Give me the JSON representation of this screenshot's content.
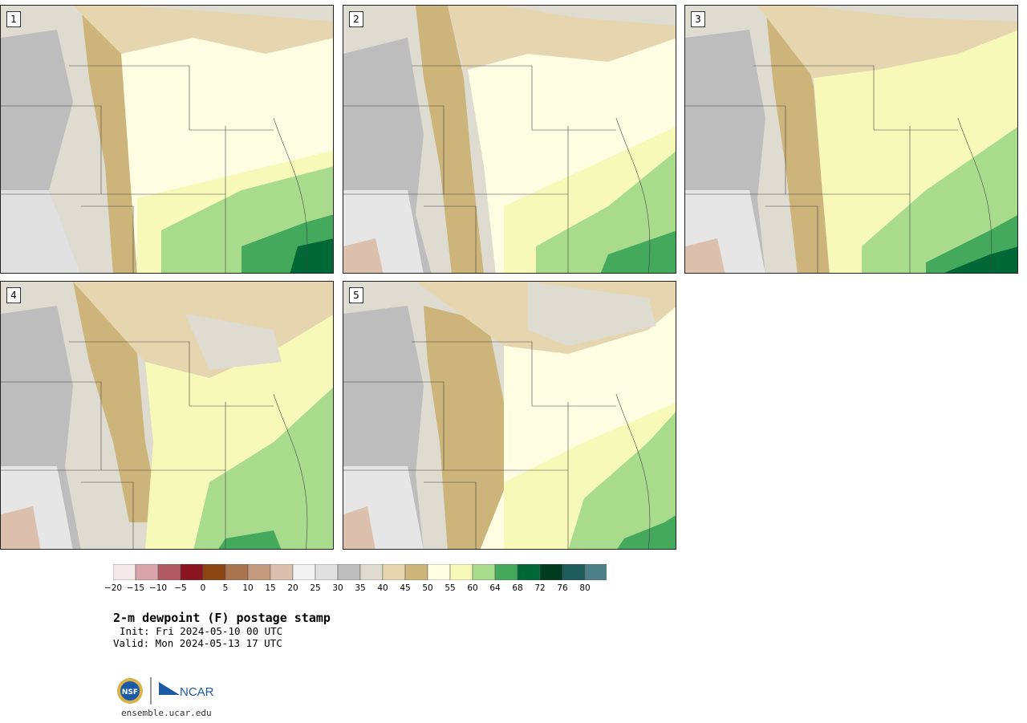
{
  "panels": [
    {
      "label": "1"
    },
    {
      "label": "2"
    },
    {
      "label": "3"
    },
    {
      "label": "4"
    },
    {
      "label": "5"
    }
  ],
  "colorbar": {
    "ticks": [
      "−20",
      "−15",
      "−10",
      "−5",
      "0",
      "5",
      "10",
      "15",
      "20",
      "25",
      "30",
      "35",
      "40",
      "45",
      "50",
      "55",
      "60",
      "64",
      "68",
      "72",
      "76",
      "80"
    ],
    "colors": [
      "#f3e9ea",
      "#d8a4aa",
      "#b15a63",
      "#8a1521",
      "#8b4513",
      "#a97450",
      "#c49a7f",
      "#dcc0ae",
      "#f2f2f2",
      "#e0e0e0",
      "#bdbdbd",
      "#dedcd0",
      "#e6d6b0",
      "#cdb47a",
      "#fffde2",
      "#f7f9b8",
      "#a8dc8c",
      "#44a95c",
      "#006837",
      "#003b20",
      "#1f5c5c",
      "#4f7f86"
    ]
  },
  "title": "2-m dewpoint (F) postage stamp",
  "init": "Init: Fri 2024-05-10 00 UTC",
  "valid": "Valid: Mon 2024-05-13 17 UTC",
  "logos": {
    "nsf": "NSF",
    "ncar": "NCAR"
  },
  "site": "ensemble.ucar.edu"
}
